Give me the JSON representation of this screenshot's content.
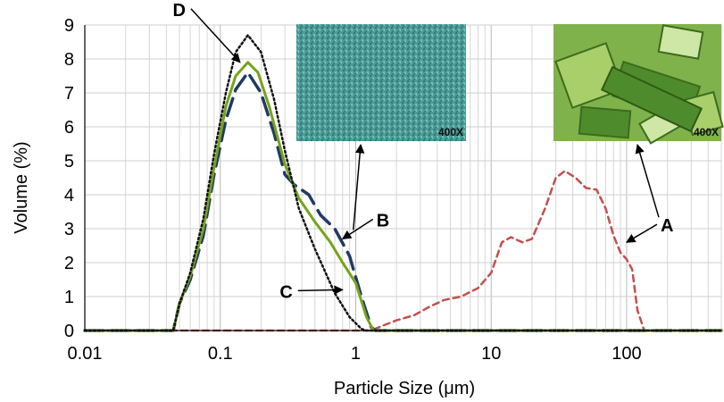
{
  "chart_data": {
    "type": "line",
    "xlabel": "Particle Size (μm)",
    "ylabel": "Volume (%)",
    "x_scale": "log",
    "xlim": [
      0.01,
      500
    ],
    "ylim": [
      0,
      9
    ],
    "grid": true,
    "x_ticks": [
      {
        "value": 0.01,
        "label": "0.01"
      },
      {
        "value": 0.1,
        "label": "0.1"
      },
      {
        "value": 1,
        "label": "1"
      },
      {
        "value": 10,
        "label": "10"
      },
      {
        "value": 100,
        "label": "100"
      }
    ],
    "y_ticks": [
      0,
      1,
      2,
      3,
      4,
      5,
      6,
      7,
      8,
      9
    ],
    "series": [
      {
        "name": "A",
        "color": "#c0504d",
        "style": "short-dash",
        "points": [
          [
            0.01,
            0
          ],
          [
            1.3,
            0
          ],
          [
            1.6,
            0.15
          ],
          [
            2,
            0.3
          ],
          [
            2.7,
            0.45
          ],
          [
            3.5,
            0.7
          ],
          [
            4.5,
            0.9
          ],
          [
            6,
            1.0
          ],
          [
            8,
            1.25
          ],
          [
            10,
            1.7
          ],
          [
            12,
            2.6
          ],
          [
            14,
            2.75
          ],
          [
            17,
            2.6
          ],
          [
            20,
            2.7
          ],
          [
            25,
            3.6
          ],
          [
            30,
            4.5
          ],
          [
            35,
            4.7
          ],
          [
            42,
            4.5
          ],
          [
            50,
            4.2
          ],
          [
            60,
            4.15
          ],
          [
            70,
            3.6
          ],
          [
            80,
            2.8
          ],
          [
            90,
            2.3
          ],
          [
            100,
            2.1
          ],
          [
            110,
            1.8
          ],
          [
            120,
            0.6
          ],
          [
            135,
            0
          ],
          [
            500,
            0
          ]
        ]
      },
      {
        "name": "B",
        "color": "#1f3b64",
        "style": "long-dash",
        "points": [
          [
            0.01,
            0
          ],
          [
            0.045,
            0
          ],
          [
            0.05,
            0.8
          ],
          [
            0.06,
            1.5
          ],
          [
            0.075,
            2.8
          ],
          [
            0.09,
            4.6
          ],
          [
            0.11,
            6.2
          ],
          [
            0.13,
            7.1
          ],
          [
            0.16,
            7.6
          ],
          [
            0.2,
            7.0
          ],
          [
            0.25,
            5.8
          ],
          [
            0.3,
            4.6
          ],
          [
            0.35,
            4.3
          ],
          [
            0.45,
            4.0
          ],
          [
            0.55,
            3.4
          ],
          [
            0.7,
            3.0
          ],
          [
            0.9,
            2.2
          ],
          [
            1.1,
            1.0
          ],
          [
            1.3,
            0.1
          ],
          [
            1.4,
            0
          ],
          [
            500,
            0
          ]
        ]
      },
      {
        "name": "C",
        "color": "#76a31b",
        "style": "solid",
        "points": [
          [
            0.01,
            0
          ],
          [
            0.045,
            0
          ],
          [
            0.05,
            0.8
          ],
          [
            0.06,
            1.6
          ],
          [
            0.075,
            3.0
          ],
          [
            0.09,
            4.8
          ],
          [
            0.11,
            6.6
          ],
          [
            0.13,
            7.5
          ],
          [
            0.16,
            7.9
          ],
          [
            0.19,
            7.6
          ],
          [
            0.23,
            6.6
          ],
          [
            0.3,
            4.9
          ],
          [
            0.38,
            3.9
          ],
          [
            0.5,
            3.2
          ],
          [
            0.65,
            2.6
          ],
          [
            0.8,
            2.0
          ],
          [
            1.0,
            1.4
          ],
          [
            1.2,
            0.4
          ],
          [
            1.35,
            0
          ],
          [
            500,
            0
          ]
        ]
      },
      {
        "name": "D",
        "color": "#111111",
        "style": "dotted",
        "points": [
          [
            0.01,
            0
          ],
          [
            0.045,
            0
          ],
          [
            0.05,
            0.8
          ],
          [
            0.06,
            1.7
          ],
          [
            0.075,
            3.3
          ],
          [
            0.09,
            5.2
          ],
          [
            0.11,
            7.0
          ],
          [
            0.13,
            8.2
          ],
          [
            0.16,
            8.7
          ],
          [
            0.2,
            8.2
          ],
          [
            0.25,
            6.8
          ],
          [
            0.3,
            5.3
          ],
          [
            0.38,
            3.6
          ],
          [
            0.5,
            2.4
          ],
          [
            0.7,
            1.1
          ],
          [
            0.9,
            0.4
          ],
          [
            1.1,
            0.05
          ],
          [
            1.2,
            0
          ],
          [
            500,
            0
          ]
        ]
      }
    ],
    "annotations": [
      {
        "label": "A",
        "target": [
          100,
          2.6
        ]
      },
      {
        "label": "B",
        "target": [
          0.8,
          2.7
        ]
      },
      {
        "label": "C",
        "target": [
          0.8,
          1.2
        ]
      },
      {
        "label": "D",
        "target": [
          0.14,
          7.9
        ]
      }
    ],
    "insets": [
      {
        "name": "B",
        "caption": "400X",
        "palette": [
          "#3f8f8a",
          "#5aa7a3",
          "#2f7a74",
          "#73b9b3"
        ]
      },
      {
        "name": "A",
        "caption": "400X",
        "palette": [
          "#7fb24a",
          "#a9cf6a",
          "#4e8b2c",
          "#cfe7a6"
        ]
      }
    ]
  }
}
